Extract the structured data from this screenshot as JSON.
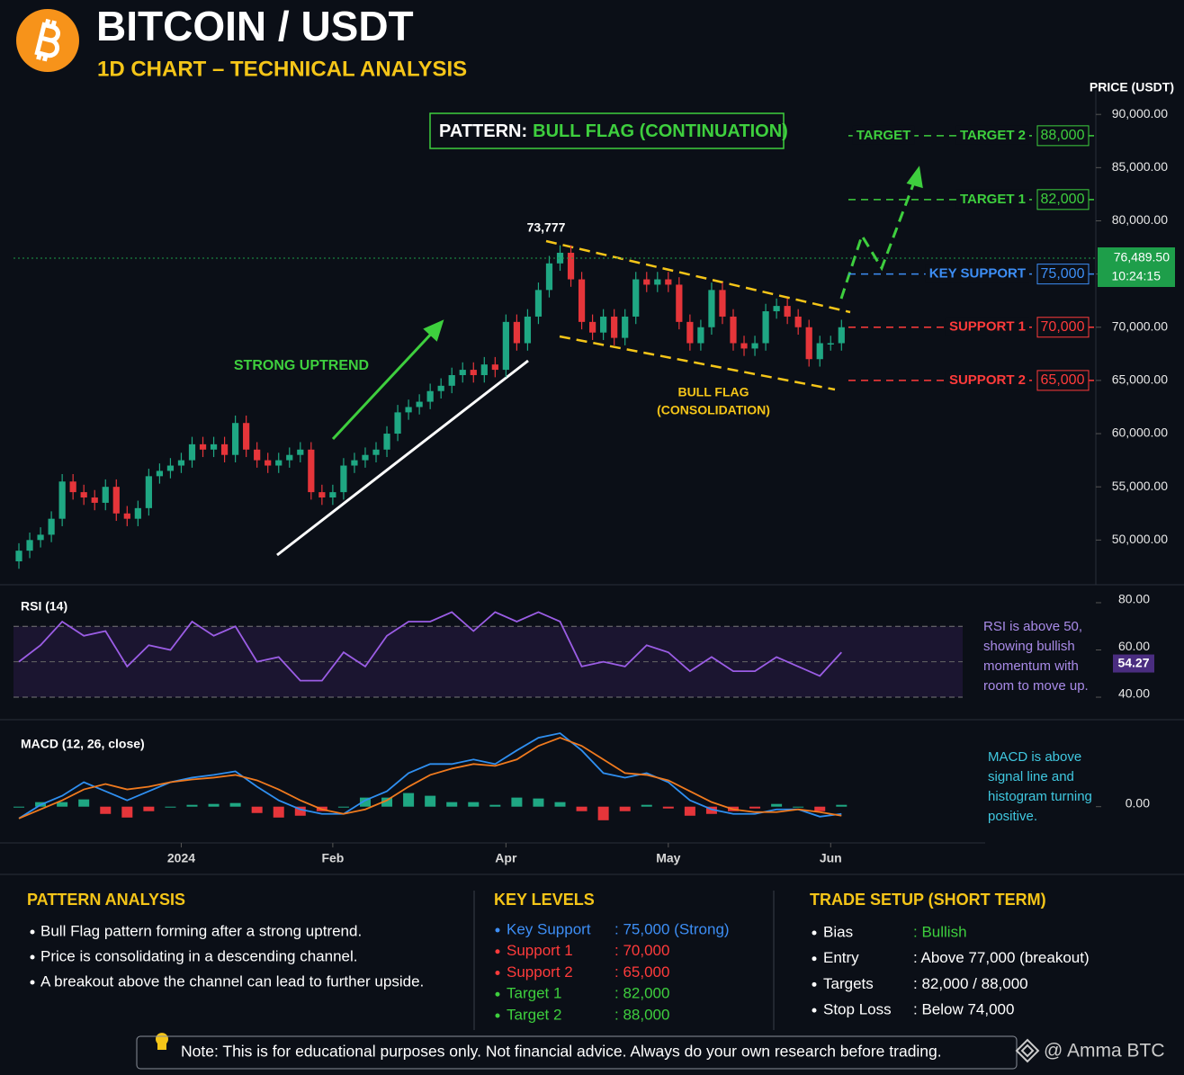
{
  "header": {
    "title": "BITCOIN / USDT",
    "subtitle": "1D CHART – TECHNICAL ANALYSIS"
  },
  "chart_data": [
    {
      "type": "candlestick",
      "y_axis_label": "PRICE (USDT)",
      "pattern_label": "PATTERN:",
      "pattern_name": "BULL FLAG (CONTINUATION)",
      "x": [
        0,
        1,
        2,
        3,
        4,
        5,
        6,
        7,
        8,
        9,
        10,
        11,
        12,
        13,
        14,
        15,
        16,
        17,
        18,
        19,
        20,
        21,
        22,
        23,
        24,
        25,
        26,
        27,
        28,
        29,
        30,
        31,
        32,
        33,
        34,
        35,
        36,
        37,
        38,
        39,
        40,
        41,
        42,
        43,
        44,
        45,
        46,
        47,
        48,
        49,
        50,
        51,
        52,
        53,
        54,
        55,
        56,
        57,
        58,
        59,
        60,
        61,
        62,
        63,
        64,
        65,
        66,
        67,
        68,
        69,
        70,
        71,
        72,
        73,
        74,
        75,
        76
      ],
      "open": [
        48000,
        49000,
        50000,
        50500,
        52000,
        55500,
        54500,
        54000,
        53500,
        55000,
        52500,
        52000,
        53000,
        56000,
        56500,
        57000,
        57500,
        59000,
        58500,
        59000,
        58000,
        61000,
        58500,
        57500,
        57000,
        57500,
        58000,
        58500,
        54500,
        54000,
        54500,
        57000,
        57500,
        58000,
        58500,
        60000,
        62000,
        62500,
        63000,
        64000,
        64500,
        65500,
        66000,
        65500,
        66500,
        66000,
        70500,
        68500,
        71000,
        73500,
        76000,
        77000,
        74500,
        70500,
        69500,
        71000,
        69000,
        71000,
        74500,
        74000,
        74500,
        74000,
        70500,
        68500,
        70000,
        73500,
        71000,
        68500,
        68000,
        68500,
        71500,
        72000,
        71000,
        70000,
        67000,
        68500,
        68500
      ],
      "high": [
        49700,
        50700,
        51200,
        52700,
        56200,
        56200,
        55200,
        54700,
        55700,
        55700,
        53200,
        53700,
        56700,
        57200,
        57700,
        58200,
        59700,
        59700,
        59700,
        59700,
        61700,
        61700,
        59200,
        58200,
        58200,
        58700,
        59200,
        59200,
        55200,
        55200,
        57700,
        58200,
        58700,
        59200,
        60700,
        62700,
        63200,
        63700,
        64700,
        65200,
        66200,
        66700,
        66700,
        67200,
        67200,
        71200,
        71200,
        71700,
        74200,
        76700,
        77700,
        77700,
        75200,
        71200,
        71700,
        71700,
        71700,
        75200,
        75200,
        75200,
        75200,
        74700,
        71200,
        70700,
        74200,
        74200,
        71700,
        69200,
        69200,
        72200,
        72700,
        72700,
        71700,
        70700,
        69200,
        69200,
        70700
      ],
      "low": [
        47300,
        48300,
        49300,
        49800,
        51300,
        53800,
        53300,
        52800,
        52800,
        51800,
        51300,
        51300,
        52300,
        55300,
        55800,
        56300,
        56800,
        57800,
        57800,
        57300,
        57300,
        57800,
        56800,
        56300,
        56300,
        56800,
        57300,
        53800,
        53300,
        53300,
        53800,
        56300,
        56800,
        57300,
        57800,
        59300,
        61300,
        61800,
        62300,
        63300,
        63800,
        64800,
        64800,
        64800,
        65300,
        65300,
        67800,
        67800,
        70300,
        72800,
        75300,
        73800,
        69800,
        68800,
        68800,
        68300,
        68300,
        70300,
        73300,
        73300,
        73300,
        69800,
        67800,
        67800,
        69300,
        70300,
        67800,
        67300,
        67300,
        67800,
        70800,
        70300,
        69300,
        66300,
        66300,
        67800,
        67800
      ],
      "close": [
        49000,
        50000,
        50500,
        52000,
        55500,
        54500,
        54000,
        53500,
        55000,
        52500,
        52000,
        53000,
        56000,
        56500,
        57000,
        57500,
        59000,
        58500,
        59000,
        58000,
        61000,
        58500,
        57500,
        57000,
        57500,
        58000,
        58500,
        54500,
        54000,
        54500,
        57000,
        57500,
        58000,
        58500,
        60000,
        62000,
        62500,
        63000,
        64000,
        64500,
        65500,
        66000,
        65500,
        66500,
        66000,
        70500,
        68500,
        71000,
        73500,
        76000,
        77000,
        74500,
        70500,
        69500,
        71000,
        69000,
        71000,
        74500,
        74000,
        74500,
        74000,
        70500,
        68500,
        70000,
        73500,
        71000,
        68500,
        68000,
        68500,
        71500,
        72000,
        71000,
        70000,
        67000,
        68500,
        68500,
        70000
      ],
      "up_color": "#1fa783",
      "down_color": "#e5353a",
      "xlim": [
        -0.5,
        99.5
      ],
      "xticks": [
        {
          "value": 15,
          "label": "2024"
        },
        {
          "value": 29,
          "label": "Feb"
        },
        {
          "value": 45,
          "label": "Apr"
        },
        {
          "value": 60,
          "label": "May"
        },
        {
          "value": 75,
          "label": "Jun"
        }
      ],
      "ylim": [
        45800,
        92300
      ],
      "yticks": [
        {
          "value": 50000,
          "label": "50,000.00"
        },
        {
          "value": 55000,
          "label": "55,000.00"
        },
        {
          "value": 60000,
          "label": "60,000.00"
        },
        {
          "value": 65000,
          "label": "65,000.00"
        },
        {
          "value": 70000,
          "label": "70,000.00"
        },
        {
          "value": 75000,
          "label": "75,000.00"
        },
        {
          "value": 80000,
          "label": "80,000.00"
        },
        {
          "value": 85000,
          "label": "85,000.00"
        },
        {
          "value": 90000,
          "label": "90,000.00"
        }
      ],
      "grid": false,
      "target_label": "TARGET",
      "levels": [
        {
          "name": "TARGET 2",
          "value": 88000,
          "label": "88,000",
          "color": "#3ecf3e"
        },
        {
          "name": "TARGET 1",
          "value": 82000,
          "label": "82,000",
          "color": "#3ecf3e"
        },
        {
          "name": "KEY SUPPORT",
          "value": 75000,
          "label": "75,000",
          "color": "#3d8ef5"
        },
        {
          "name": "SUPPORT 1",
          "value": 70000,
          "label": "70,000",
          "color": "#ff3b3b"
        },
        {
          "name": "SUPPORT 2",
          "value": 65000,
          "label": "65,000",
          "color": "#ff3b3b"
        }
      ],
      "current_price": {
        "value": 76489.5,
        "label": "76,489.50",
        "time": "10:24:15",
        "color": "#1e9e4a"
      },
      "annotations": [
        "STRONG UPTREND",
        "73,777",
        "BULL FLAG",
        "(CONSOLIDATION)"
      ]
    },
    {
      "type": "line",
      "title": "RSI (14)",
      "x": [
        0,
        2,
        4,
        6,
        8,
        10,
        12,
        14,
        16,
        18,
        20,
        22,
        24,
        26,
        28,
        30,
        32,
        34,
        36,
        38,
        40,
        42,
        44,
        46,
        48,
        50,
        52,
        54,
        56,
        58,
        60,
        62,
        64,
        66,
        68,
        70,
        72,
        74,
        76
      ],
      "series": [
        {
          "color": "#9b5de5",
          "values": [
            55,
            62,
            72,
            66,
            68,
            53,
            62,
            60,
            72,
            66,
            70,
            55,
            57,
            47,
            47,
            59,
            53,
            66,
            72,
            72,
            76,
            68,
            76,
            72,
            76,
            72,
            53,
            55,
            53,
            62,
            59,
            51,
            57,
            51,
            51,
            57,
            53,
            49,
            59
          ]
        }
      ],
      "ylim": [
        32.4,
        85.7
      ],
      "yticks": [
        {
          "value": 40,
          "label": "40.00"
        },
        {
          "value": 60,
          "label": "60.00"
        },
        {
          "value": 80,
          "label": "80.00"
        }
      ],
      "bands": [
        40,
        70
      ],
      "midline": 55,
      "current": {
        "value": 54.27,
        "label": "54.27"
      },
      "note": [
        "RSI is above 50,",
        "showing bullish",
        "momentum with",
        "room to move up."
      ]
    },
    {
      "type": "line",
      "title": "MACD (12, 26, close)",
      "x": [
        0,
        2,
        4,
        6,
        8,
        10,
        12,
        14,
        16,
        18,
        20,
        22,
        24,
        26,
        28,
        30,
        32,
        34,
        36,
        38,
        40,
        42,
        44,
        46,
        48,
        50,
        52,
        54,
        56,
        58,
        60,
        62,
        64,
        66,
        68,
        70,
        72,
        74,
        76
      ],
      "series": [
        {
          "type": "bar",
          "color": "#1fa783",
          "down_color": "#e5353a",
          "values": [
            0,
            50,
            50,
            80,
            -80,
            -120,
            -50,
            0,
            20,
            30,
            40,
            -70,
            -120,
            -100,
            -50,
            0,
            100,
            100,
            150,
            120,
            50,
            50,
            20,
            100,
            90,
            50,
            -50,
            -150,
            -50,
            20,
            -20,
            -100,
            -80,
            -50,
            -20,
            30,
            0,
            -50,
            20
          ]
        },
        {
          "color": "#2f8ff0",
          "values": [
            -130,
            20,
            120,
            270,
            170,
            70,
            170,
            270,
            320,
            350,
            390,
            220,
            70,
            -30,
            -80,
            -80,
            70,
            170,
            370,
            470,
            470,
            520,
            470,
            620,
            760,
            810,
            620,
            370,
            320,
            370,
            270,
            70,
            -30,
            -80,
            -80,
            -30,
            -30,
            -110,
            -80
          ]
        },
        {
          "color": "#f07a1e",
          "values": [
            -130,
            -30,
            70,
            190,
            250,
            190,
            220,
            270,
            300,
            320,
            350,
            290,
            190,
            70,
            -30,
            -80,
            -30,
            70,
            220,
            350,
            420,
            470,
            450,
            520,
            670,
            760,
            670,
            520,
            370,
            350,
            290,
            170,
            50,
            -30,
            -60,
            -60,
            -30,
            -60,
            -100
          ]
        }
      ],
      "ylim": [
        -380,
        880
      ],
      "yticks": [
        {
          "value": 0,
          "label": "0.00"
        }
      ],
      "note": [
        "MACD is above",
        "signal line and",
        "histogram turning",
        "positive."
      ]
    }
  ],
  "panels": [
    {
      "title": "PATTERN ANALYSIS",
      "items": [
        "Bull Flag pattern forming after a strong uptrend.",
        "Price is consolidating in a descending channel.",
        "A breakout above the channel can lead to further upside."
      ]
    },
    {
      "title": "KEY LEVELS",
      "rows": [
        {
          "label": "Key Support",
          "value": ": 75,000 (Strong)",
          "color": "#3d8ef5"
        },
        {
          "label": "Support 1",
          "value": ": 70,000",
          "color": "#ff3b3b"
        },
        {
          "label": "Support 2",
          "value": ": 65,000",
          "color": "#ff3b3b"
        },
        {
          "label": "Target 1",
          "value": ": 82,000",
          "color": "#3ecf3e"
        },
        {
          "label": "Target 2",
          "value": ": 88,000",
          "color": "#3ecf3e"
        }
      ]
    },
    {
      "title": "TRADE SETUP (SHORT TERM)",
      "rows": [
        {
          "label": "Bias",
          "value": ": Bullish",
          "color": "#3ecf3e"
        },
        {
          "label": "Entry",
          "value": ": Above 77,000 (breakout)",
          "color": "#ffffff"
        },
        {
          "label": "Targets",
          "value": ": 82,000 / 88,000",
          "color": "#ffffff"
        },
        {
          "label": "Stop Loss",
          "value": ": Below 74,000",
          "color": "#ffffff"
        }
      ]
    }
  ],
  "footer": {
    "note": "Note: This is for educational purposes only. Not financial advice. Always do your own research before trading.",
    "watermark": "@ Amma BTC"
  }
}
